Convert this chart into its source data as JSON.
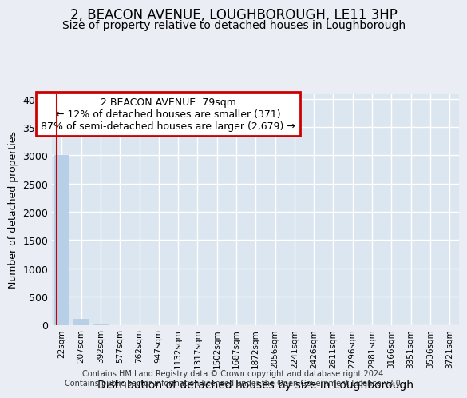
{
  "title": "2, BEACON AVENUE, LOUGHBOROUGH, LE11 3HP",
  "subtitle": "Size of property relative to detached houses in Loughborough",
  "xlabel": "Distribution of detached houses by size in Loughborough",
  "ylabel": "Number of detached properties",
  "footer_line1": "Contains HM Land Registry data © Crown copyright and database right 2024.",
  "footer_line2": "Contains public sector information licensed under the Open Government Licence v3.0.",
  "categories": [
    "22sqm",
    "207sqm",
    "392sqm",
    "577sqm",
    "762sqm",
    "947sqm",
    "1132sqm",
    "1317sqm",
    "1502sqm",
    "1687sqm",
    "1872sqm",
    "2056sqm",
    "2241sqm",
    "2426sqm",
    "2611sqm",
    "2796sqm",
    "2981sqm",
    "3166sqm",
    "3351sqm",
    "3536sqm",
    "3721sqm"
  ],
  "values": [
    3000,
    110,
    2,
    0,
    0,
    0,
    0,
    0,
    0,
    0,
    0,
    0,
    0,
    0,
    0,
    0,
    0,
    0,
    0,
    0,
    0
  ],
  "bar_color": "#b8cfe8",
  "property_line_x": -0.25,
  "annotation_title": "2 BEACON AVENUE: 79sqm",
  "annotation_line1": "← 12% of detached houses are smaller (371)",
  "annotation_line2": "87% of semi-detached houses are larger (2,679) →",
  "ylim": [
    0,
    4100
  ],
  "yticks": [
    0,
    500,
    1000,
    1500,
    2000,
    2500,
    3000,
    3500,
    4000
  ],
  "bg_color": "#eaeef4",
  "plot_bg_color": "#dce6f0",
  "grid_color": "#ffffff",
  "title_fontsize": 12,
  "subtitle_fontsize": 10,
  "annotation_box_color": "#cc0000"
}
